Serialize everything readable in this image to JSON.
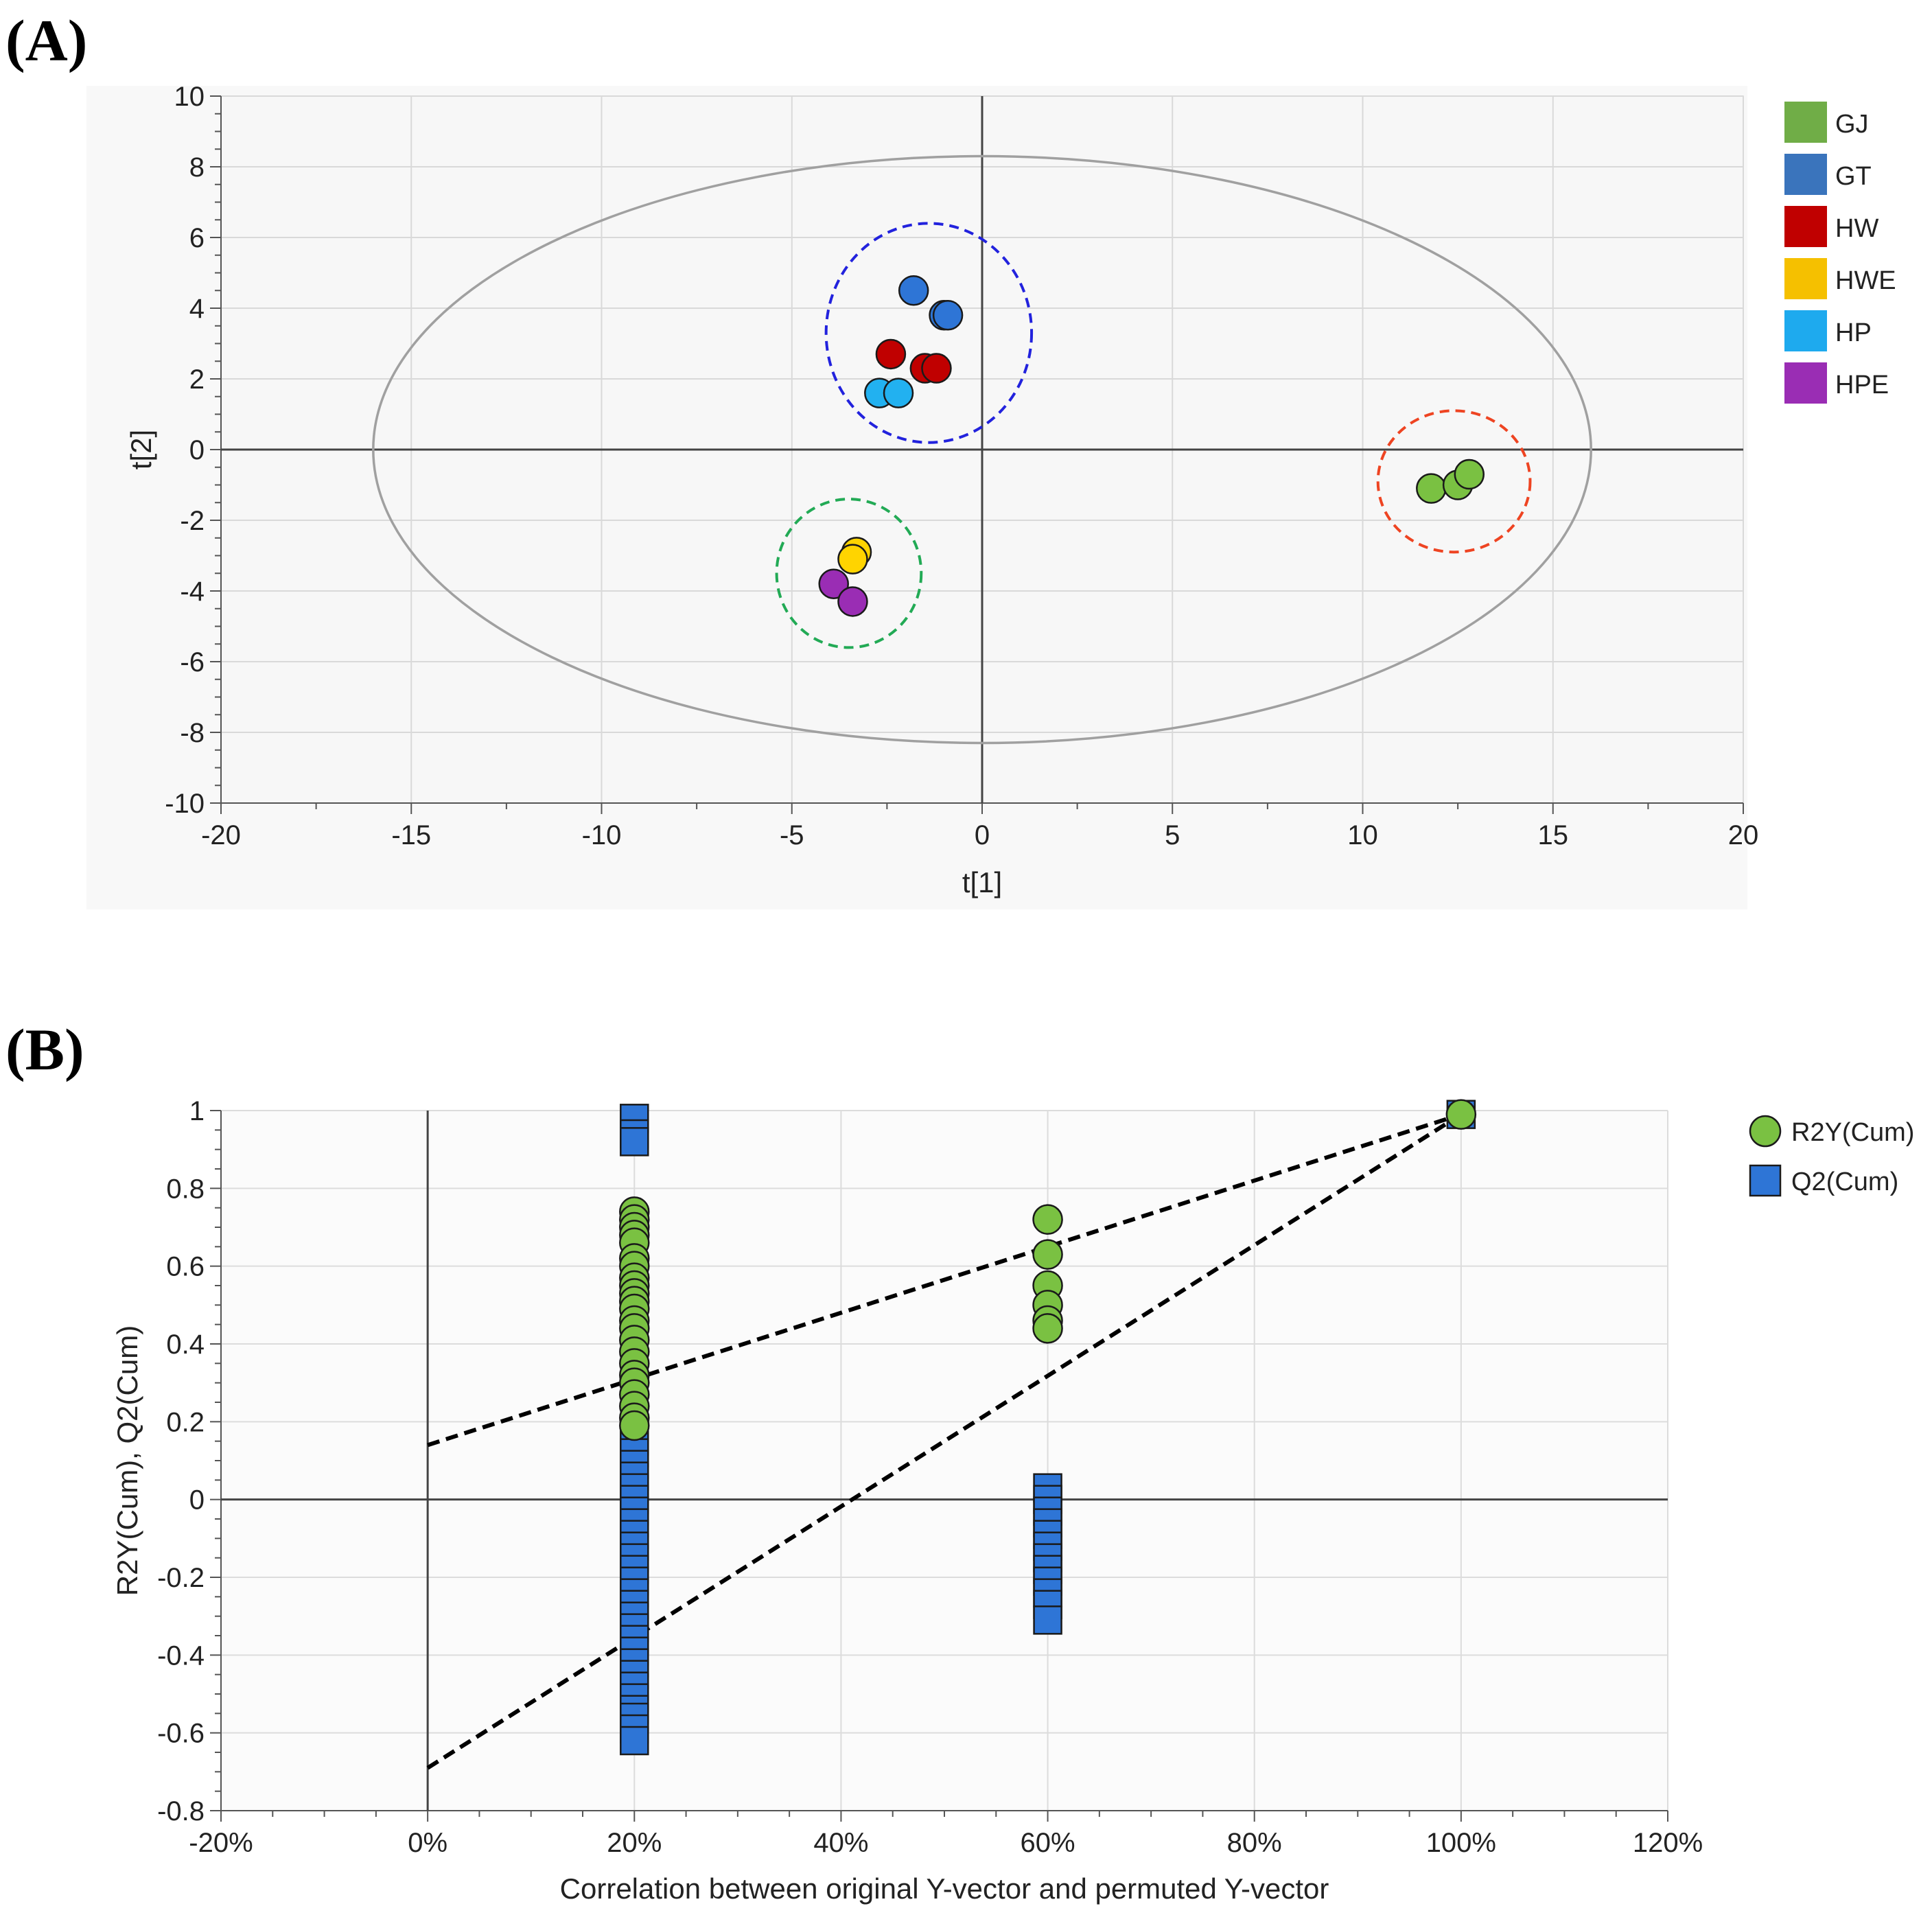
{
  "chart_data": [
    {
      "panel_label": "(A)",
      "type": "scatter",
      "xlabel": "t[1]",
      "ylabel": "t[2]",
      "xlim": [
        -20,
        20
      ],
      "ylim": [
        -10,
        10
      ],
      "xticks": [
        "-20",
        "-15",
        "-10",
        "-5",
        "0",
        "5",
        "10",
        "15",
        "20"
      ],
      "yticks": [
        "10",
        "8",
        "6",
        "4",
        "2",
        "0",
        "-2",
        "-4",
        "-6",
        "-8",
        "-10"
      ],
      "grid": true,
      "legend_placement": "right",
      "hotelling_ellipse": {
        "cx": 0,
        "cy": 0,
        "rx": 16,
        "ry": 8.3,
        "color": "#a0a0a0"
      },
      "group_circles": [
        {
          "cx": -1.4,
          "cy": 3.3,
          "rx": 2.7,
          "ry": 3.1,
          "color": "#2222dd"
        },
        {
          "cx": -3.5,
          "cy": -3.5,
          "rx": 1.9,
          "ry": 2.1,
          "color": "#22aa55"
        },
        {
          "cx": 12.4,
          "cy": -0.9,
          "rx": 2.0,
          "ry": 2.0,
          "color": "#ee4422"
        }
      ],
      "series": [
        {
          "name": "GJ",
          "color": "#70ad47",
          "marker_color": "#7ac142",
          "points": [
            [
              11.8,
              -1.1
            ],
            [
              12.5,
              -1.0
            ],
            [
              12.8,
              -0.7
            ]
          ]
        },
        {
          "name": "GT",
          "color": "#3a74bc",
          "marker_color": "#2e75d6",
          "points": [
            [
              -1.8,
              4.5
            ],
            [
              -1.0,
              3.8
            ],
            [
              -0.9,
              3.8
            ]
          ]
        },
        {
          "name": "HW",
          "color": "#c00000",
          "marker_color": "#c00000",
          "points": [
            [
              -2.4,
              2.7
            ],
            [
              -1.5,
              2.3
            ],
            [
              -1.2,
              2.3
            ]
          ]
        },
        {
          "name": "HWE",
          "color": "#f5c000",
          "marker_color": "#ffd400",
          "points": [
            [
              -3.3,
              -2.9
            ],
            [
              -3.4,
              -3.1
            ]
          ]
        },
        {
          "name": "HP",
          "color": "#1eaaee",
          "marker_color": "#22b1f0",
          "points": [
            [
              -2.7,
              1.6
            ],
            [
              -2.2,
              1.6
            ]
          ]
        },
        {
          "name": "HPE",
          "color": "#9a2db4",
          "marker_color": "#9a2db4",
          "points": [
            [
              -3.9,
              -3.8
            ],
            [
              -3.4,
              -4.3
            ]
          ]
        }
      ]
    },
    {
      "panel_label": "(B)",
      "type": "scatter",
      "xlabel": "Correlation between original Y-vector and permuted Y-vector",
      "ylabel": "R2Y(Cum), Q2(Cum)",
      "xlim": [
        -20,
        120
      ],
      "ylim": [
        -0.8,
        1
      ],
      "xticks": [
        "-20%",
        "0%",
        "20%",
        "40%",
        "60%",
        "80%",
        "100%",
        "120%"
      ],
      "yticks": [
        "1",
        "0.8",
        "0.6",
        "0.4",
        "0.2",
        "0",
        "-0.2",
        "-0.4",
        "-0.6",
        "-0.8"
      ],
      "grid": true,
      "legend_placement": "right",
      "series": [
        {
          "name": "R2Y(Cum)",
          "marker": "circle",
          "color": "#70ad47",
          "marker_color": "#7ac142",
          "points": [
            [
              20,
              0.74
            ],
            [
              20,
              0.72
            ],
            [
              20,
              0.7
            ],
            [
              20,
              0.68
            ],
            [
              20,
              0.66
            ],
            [
              20,
              0.62
            ],
            [
              20,
              0.6
            ],
            [
              20,
              0.57
            ],
            [
              20,
              0.55
            ],
            [
              20,
              0.53
            ],
            [
              20,
              0.51
            ],
            [
              20,
              0.49
            ],
            [
              20,
              0.46
            ],
            [
              20,
              0.44
            ],
            [
              20,
              0.41
            ],
            [
              20,
              0.38
            ],
            [
              20,
              0.35
            ],
            [
              20,
              0.32
            ],
            [
              20,
              0.3
            ],
            [
              20,
              0.27
            ],
            [
              20,
              0.24
            ],
            [
              20,
              0.21
            ],
            [
              20,
              0.19
            ],
            [
              60,
              0.72
            ],
            [
              60,
              0.63
            ],
            [
              60,
              0.55
            ],
            [
              60,
              0.5
            ],
            [
              60,
              0.46
            ],
            [
              60,
              0.44
            ],
            [
              100,
              0.99
            ]
          ]
        },
        {
          "name": "Q2(Cum)",
          "marker": "square",
          "color": "#3a74bc",
          "marker_color": "#2e75d6",
          "points": [
            [
              20,
              0.98
            ],
            [
              20,
              0.94
            ],
            [
              20,
              0.92
            ],
            [
              20,
              0.15
            ],
            [
              20,
              0.12
            ],
            [
              20,
              0.09
            ],
            [
              20,
              0.06
            ],
            [
              20,
              0.03
            ],
            [
              20,
              0.0
            ],
            [
              20,
              -0.03
            ],
            [
              20,
              -0.06
            ],
            [
              20,
              -0.09
            ],
            [
              20,
              -0.12
            ],
            [
              20,
              -0.15
            ],
            [
              20,
              -0.18
            ],
            [
              20,
              -0.21
            ],
            [
              20,
              -0.24
            ],
            [
              20,
              -0.27
            ],
            [
              20,
              -0.3
            ],
            [
              20,
              -0.33
            ],
            [
              20,
              -0.36
            ],
            [
              20,
              -0.39
            ],
            [
              20,
              -0.42
            ],
            [
              20,
              -0.45
            ],
            [
              20,
              -0.48
            ],
            [
              20,
              -0.51
            ],
            [
              20,
              -0.54
            ],
            [
              20,
              -0.56
            ],
            [
              20,
              -0.59
            ],
            [
              20,
              -0.62
            ],
            [
              60,
              0.03
            ],
            [
              60,
              0.0
            ],
            [
              60,
              -0.03
            ],
            [
              60,
              -0.06
            ],
            [
              60,
              -0.09
            ],
            [
              60,
              -0.12
            ],
            [
              60,
              -0.15
            ],
            [
              60,
              -0.18
            ],
            [
              60,
              -0.21
            ],
            [
              60,
              -0.24
            ],
            [
              60,
              -0.27
            ],
            [
              60,
              -0.31
            ],
            [
              100,
              0.99
            ]
          ]
        }
      ],
      "regression_lines": [
        {
          "name": "R2Y(Cum)",
          "from": [
            0,
            0.14
          ],
          "to": [
            100,
            0.99
          ],
          "style": "dashed",
          "color": "#000000"
        },
        {
          "name": "Q2(Cum)",
          "from": [
            0,
            -0.69
          ],
          "to": [
            100,
            0.99
          ],
          "style": "dashed",
          "color": "#000000"
        }
      ]
    }
  ]
}
